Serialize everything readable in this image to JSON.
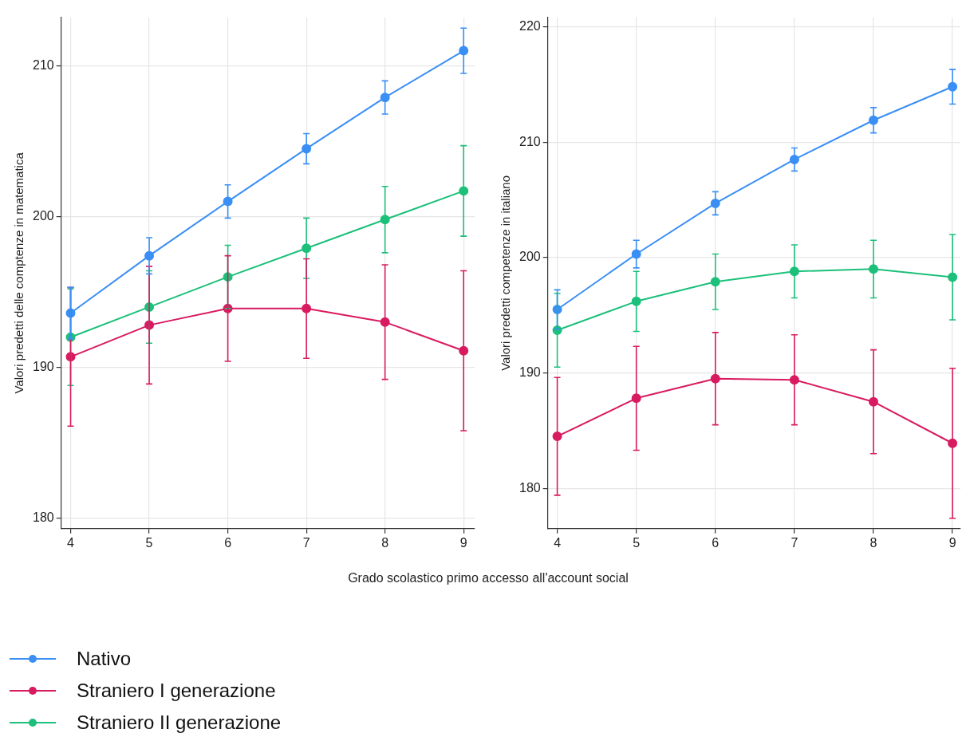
{
  "chart_data": [
    {
      "type": "line",
      "xlabel": "Grado scolastico primo accesso all'account social",
      "ylabel": "Valori predetti delle comptenze in matematica",
      "x": [
        4,
        5,
        6,
        7,
        8,
        9
      ],
      "xlim": [
        3.88,
        9.14
      ],
      "xticks": [
        4,
        5,
        6,
        7,
        8,
        9
      ],
      "ylim": [
        179.3,
        213.2
      ],
      "yticks": [
        180,
        190,
        200,
        210
      ],
      "grid": true,
      "legend": "bottom left",
      "marker": "circle",
      "line_style": "solid",
      "series": [
        {
          "name": "Nativo",
          "color": "#3a8ff5",
          "values": [
            193.6,
            197.4,
            201.0,
            204.5,
            207.9,
            211.0
          ],
          "errors": [
            1.7,
            1.2,
            1.1,
            1.0,
            1.1,
            1.5
          ]
        },
        {
          "name": "Straniero I generazione",
          "color": "#d81b60",
          "values": [
            190.7,
            192.8,
            193.9,
            193.9,
            193.0,
            191.1
          ],
          "errors": [
            4.6,
            3.9,
            3.5,
            3.3,
            3.8,
            5.3
          ]
        },
        {
          "name": "Straniero II generazione",
          "color": "#1cc07a",
          "values": [
            192.0,
            194.0,
            196.0,
            197.9,
            199.8,
            201.7
          ],
          "errors": [
            3.2,
            2.4,
            2.1,
            2.0,
            2.2,
            3.0
          ]
        }
      ]
    },
    {
      "type": "line",
      "ylabel": "Valori predetti competenze in italiano",
      "x": [
        4,
        5,
        6,
        7,
        8,
        9
      ],
      "xlim": [
        3.88,
        9.1
      ],
      "xticks": [
        4,
        5,
        6,
        7,
        8,
        9
      ],
      "ylim": [
        176.5,
        220.8
      ],
      "yticks": [
        180,
        190,
        200,
        210,
        220
      ],
      "grid": true,
      "marker": "circle",
      "line_style": "solid",
      "series": [
        {
          "color": "#3a8ff5",
          "values": [
            195.5,
            200.3,
            204.7,
            208.5,
            211.9,
            214.8
          ],
          "errors": [
            1.7,
            1.2,
            1.0,
            1.0,
            1.1,
            1.5
          ]
        },
        {
          "color": "#d81b60",
          "values": [
            184.5,
            187.8,
            189.5,
            189.4,
            187.5,
            183.9
          ],
          "errors": [
            5.1,
            4.5,
            4.0,
            3.9,
            4.5,
            6.5
          ]
        },
        {
          "color": "#1cc07a",
          "values": [
            193.7,
            196.2,
            197.9,
            198.8,
            199.0,
            198.3
          ],
          "errors": [
            3.2,
            2.6,
            2.4,
            2.3,
            2.5,
            3.7
          ]
        }
      ]
    }
  ]
}
